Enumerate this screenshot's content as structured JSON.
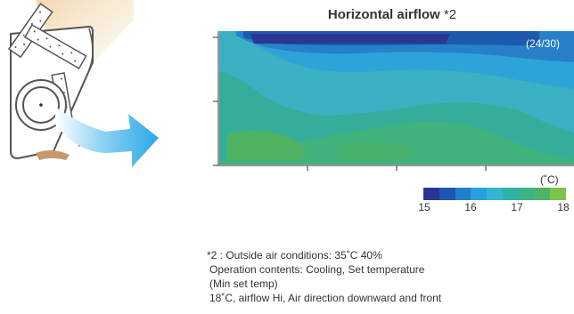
{
  "heatmap": {
    "title_bold": "Horizontal airflow",
    "title_note": " *2",
    "ratio": "(24/30)",
    "unit": "(˚C)"
  },
  "scale": {
    "ticks": [
      "15",
      "16",
      "17",
      "18"
    ],
    "colors": [
      "#2a3593",
      "#1d58b0",
      "#1f7fcc",
      "#27a0db",
      "#35b4cf",
      "#2eb2a3",
      "#3bb385",
      "#4eb268",
      "#7dc24a"
    ]
  },
  "footnote": {
    "line1": "*2 : Outside air conditions: 35˚C 40%",
    "line2": "Operation contents: Cooling, Set temperature",
    "line3": "(Min set temp)",
    "line4": "18˚C, airflow Hi, Air direction downward and front"
  }
}
